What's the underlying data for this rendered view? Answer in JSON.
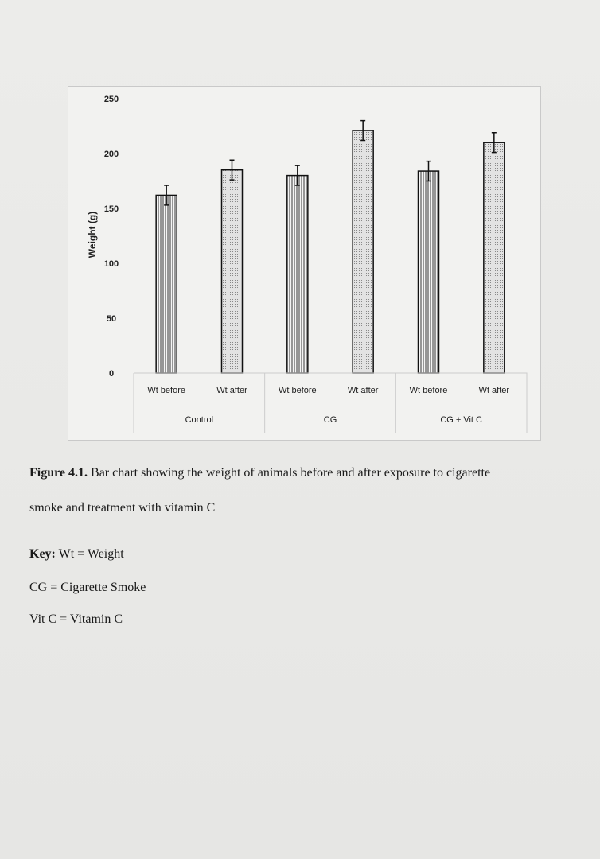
{
  "chart_data": {
    "type": "bar",
    "ylabel": "Weight (g)",
    "ylim": [
      0,
      250
    ],
    "yticks": [
      0,
      50,
      100,
      150,
      200,
      250
    ],
    "categories": [
      "Wt before",
      "Wt after",
      "Wt before",
      "Wt after",
      "Wt before",
      "Wt after"
    ],
    "groups": [
      "Control",
      "CG",
      "CG + Vit C"
    ],
    "values": [
      162,
      185,
      180,
      221,
      184,
      210
    ],
    "errors": [
      9,
      9,
      9,
      9,
      9,
      9
    ],
    "patterns": [
      "vertical-lines",
      "dotted",
      "vertical-lines",
      "dotted",
      "vertical-lines",
      "dotted"
    ],
    "grid": false,
    "legend": "none"
  },
  "caption": {
    "label": "Figure 4.1.",
    "line1": " Bar chart showing the weight of animals before and after exposure to cigarette",
    "line2": "smoke and treatment with vitamin C"
  },
  "key": {
    "label": "Key:",
    "line1": " Wt = Weight",
    "line2": "CG = Cigarette Smoke",
    "line3": "Vit C = Vitamin C"
  }
}
